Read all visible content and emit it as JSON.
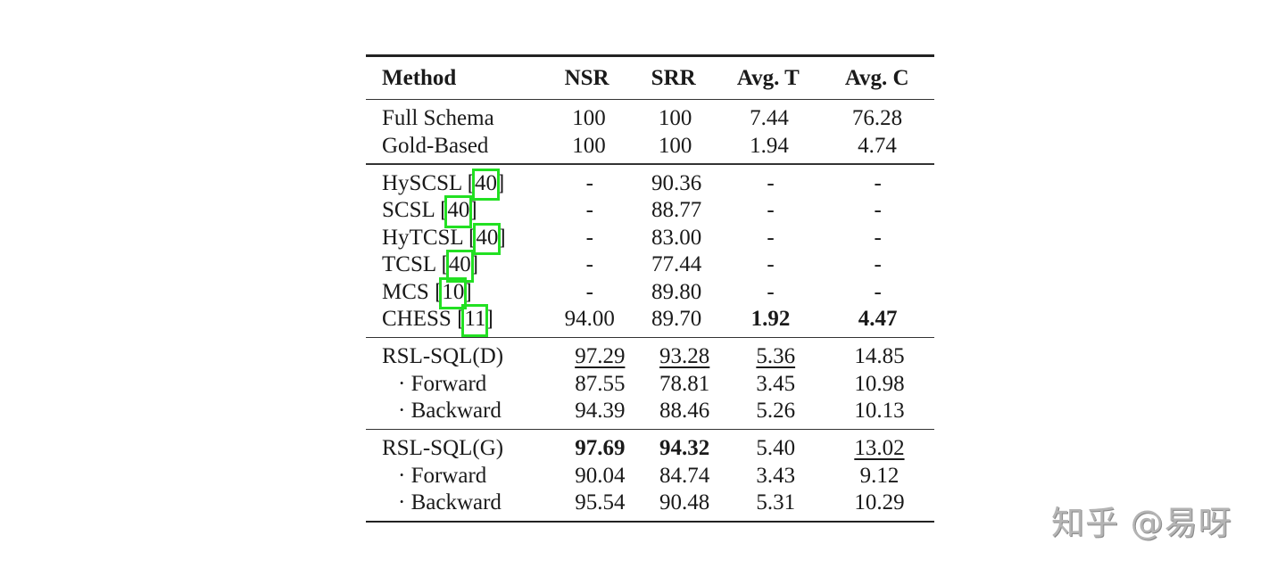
{
  "table": {
    "headers": [
      "Method",
      "NSR",
      "SRR",
      "Avg. T",
      "Avg. C"
    ],
    "groups": [
      {
        "rows": [
          {
            "method": "Full Schema",
            "nsr": "100",
            "srr": "100",
            "avg_t": "7.44",
            "avg_c": "76.28"
          },
          {
            "method": "Gold-Based",
            "nsr": "100",
            "srr": "100",
            "avg_t": "1.94",
            "avg_c": "4.74"
          }
        ]
      },
      {
        "rows": [
          {
            "method": "HySCSL",
            "ref": "40",
            "nsr": "-",
            "srr": "90.36",
            "avg_t": "-",
            "avg_c": "-"
          },
          {
            "method": "SCSL",
            "ref": "40",
            "nsr": "-",
            "srr": "88.77",
            "avg_t": "-",
            "avg_c": "-"
          },
          {
            "method": "HyTCSL",
            "ref": "40",
            "nsr": "-",
            "srr": "83.00",
            "avg_t": "-",
            "avg_c": "-"
          },
          {
            "method": "TCSL",
            "ref": "40",
            "nsr": "-",
            "srr": "77.44",
            "avg_t": "-",
            "avg_c": "-"
          },
          {
            "method": "MCS",
            "ref": "10",
            "nsr": "-",
            "srr": "89.80",
            "avg_t": "-",
            "avg_c": "-"
          },
          {
            "method": "CHESS",
            "ref": "11",
            "nsr": "94.00",
            "srr": "89.70",
            "avg_t": "1.92",
            "avg_c": "4.47",
            "bold": [
              "avg_t",
              "avg_c"
            ]
          }
        ]
      },
      {
        "rows": [
          {
            "method": "RSL-SQL(D)",
            "nsr": "97.29",
            "srr": "93.28",
            "avg_t": "5.36",
            "avg_c": "14.85",
            "underline": [
              "nsr",
              "srr",
              "avg_t"
            ]
          },
          {
            "method": "· Forward",
            "nsr": "87.55",
            "srr": "78.81",
            "avg_t": "3.45",
            "avg_c": "10.98"
          },
          {
            "method": "· Backward",
            "nsr": "94.39",
            "srr": "88.46",
            "avg_t": "5.26",
            "avg_c": "10.13"
          }
        ]
      },
      {
        "rows": [
          {
            "method": "RSL-SQL(G)",
            "nsr": "97.69",
            "srr": "94.32",
            "avg_t": "5.40",
            "avg_c": "13.02",
            "bold": [
              "nsr",
              "srr"
            ],
            "underline": [
              "avg_c"
            ]
          },
          {
            "method": "· Forward",
            "nsr": "90.04",
            "srr": "84.74",
            "avg_t": "3.43",
            "avg_c": "9.12"
          },
          {
            "method": "· Backward",
            "nsr": "95.54",
            "srr": "90.48",
            "avg_t": "5.31",
            "avg_c": "10.29"
          }
        ]
      }
    ]
  },
  "highlight_color": "#22e022",
  "watermark": "知乎 @易呀"
}
